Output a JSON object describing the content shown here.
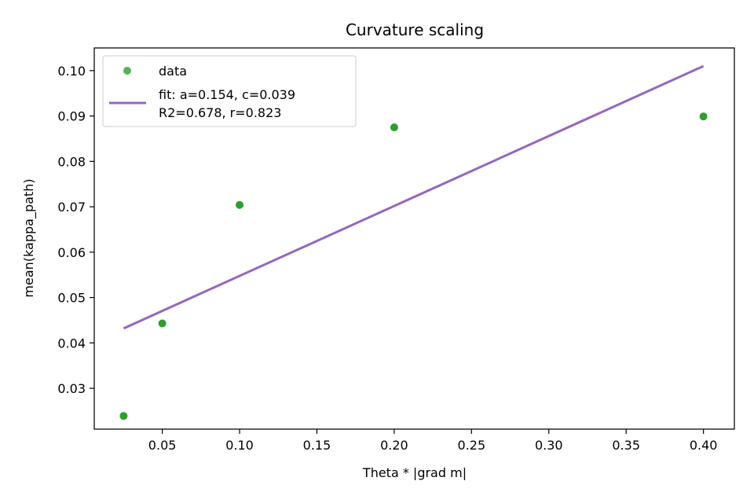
{
  "chart_data": {
    "type": "scatter",
    "title": "Curvature scaling",
    "xlabel": "Theta * |grad m|",
    "ylabel": "mean(kappa_path)",
    "xlim": [
      0.006,
      0.42
    ],
    "ylim": [
      0.021,
      0.105
    ],
    "xticks": [
      0.05,
      0.1,
      0.15,
      0.2,
      0.25,
      0.3,
      0.35,
      0.4
    ],
    "xtick_labels": [
      "0.05",
      "0.10",
      "0.15",
      "0.20",
      "0.25",
      "0.30",
      "0.35",
      "0.40"
    ],
    "yticks": [
      0.03,
      0.04,
      0.05,
      0.06,
      0.07,
      0.08,
      0.09,
      0.1
    ],
    "ytick_labels": [
      "0.03",
      "0.04",
      "0.05",
      "0.06",
      "0.07",
      "0.08",
      "0.09",
      "0.10"
    ],
    "grid": false,
    "legend_position": "top-left",
    "series": [
      {
        "name": "data",
        "kind": "scatter",
        "color": "#2ca02c",
        "x": [
          0.025,
          0.05,
          0.1,
          0.2,
          0.4
        ],
        "y": [
          0.0239,
          0.0443,
          0.0704,
          0.0875,
          0.0899
        ]
      },
      {
        "name": "fit: a=0.154, c=0.039",
        "name_line2": "R2=0.678, r=0.823",
        "kind": "line",
        "color": "#9467bd",
        "x": [
          0.025,
          0.4
        ],
        "y": [
          0.0432,
          0.101
        ]
      }
    ]
  }
}
